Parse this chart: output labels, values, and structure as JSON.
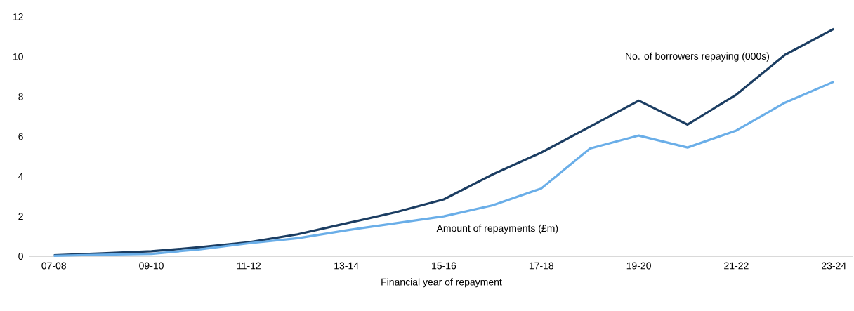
{
  "chart_data": {
    "type": "line",
    "xlabel": "Financial year of repayment",
    "categories": [
      "07-08",
      null,
      "09-10",
      null,
      "11-12",
      null,
      "13-14",
      null,
      "15-16",
      null,
      "17-18",
      null,
      "19-20",
      null,
      "21-22",
      null,
      "23-24"
    ],
    "series": [
      {
        "name": "No. of borrowers repaying (000s)",
        "color": "#1b3d62",
        "values": [
          0.05,
          0.15,
          0.25,
          0.45,
          0.7,
          1.1,
          1.65,
          2.2,
          2.85,
          4.1,
          5.2,
          6.5,
          7.8,
          6.6,
          8.1,
          10.1,
          11.4
        ]
      },
      {
        "name": "Amount of repayments (£m)",
        "color": "#6aaee8",
        "values": [
          0.02,
          0.08,
          0.12,
          0.35,
          0.65,
          0.9,
          1.3,
          1.65,
          2.0,
          2.55,
          3.4,
          5.4,
          6.05,
          5.45,
          6.3,
          7.7,
          8.75
        ]
      }
    ],
    "ylim": [
      0,
      12
    ],
    "yticks": [
      0,
      2,
      4,
      6,
      8,
      10,
      12
    ],
    "grid": false,
    "legend": false,
    "marker": "none",
    "line_style": "solid"
  }
}
